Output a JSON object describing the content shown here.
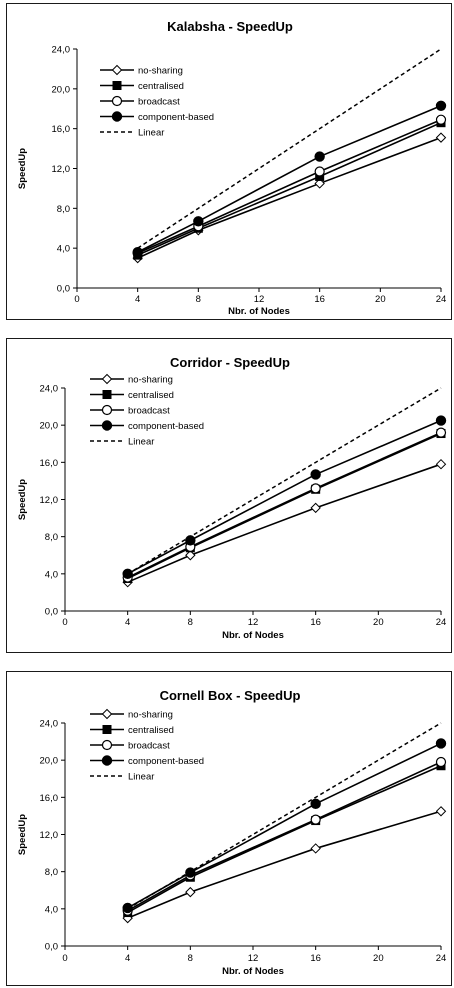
{
  "chart_data": [
    {
      "type": "line",
      "title": "Kalabsha - SpeedUp",
      "xlabel": "Nbr. of Nodes",
      "ylabel": "SpeedUp",
      "xlim": [
        0,
        24
      ],
      "ylim": [
        0,
        24
      ],
      "x_ticks": [
        "0",
        "4",
        "8",
        "12",
        "16",
        "20",
        "24"
      ],
      "y_ticks": [
        "0,0",
        "4,0",
        "8,0",
        "12,0",
        "16,0",
        "20,0",
        "24,0"
      ],
      "x": [
        4,
        8,
        16,
        24
      ],
      "legend_position": "top-left",
      "series": [
        {
          "name": "no-sharing",
          "marker": "diamond",
          "values": [
            3.0,
            5.8,
            10.5,
            15.1
          ]
        },
        {
          "name": "centralised",
          "marker": "square",
          "values": [
            3.3,
            6.0,
            11.2,
            16.6
          ]
        },
        {
          "name": "broadcast",
          "marker": "circle-open",
          "values": [
            3.5,
            6.2,
            11.7,
            16.9
          ]
        },
        {
          "name": "component-based",
          "marker": "circle-filled",
          "values": [
            3.6,
            6.7,
            13.2,
            18.3
          ]
        },
        {
          "name": "Linear",
          "marker": "none",
          "dashed": true,
          "values": [
            4,
            8,
            16,
            24
          ]
        }
      ]
    },
    {
      "type": "line",
      "title": "Corridor - SpeedUp",
      "xlabel": "Nbr. of Nodes",
      "ylabel": "SpeedUp",
      "xlim": [
        0,
        24
      ],
      "ylim": [
        0,
        24
      ],
      "x_ticks": [
        "0",
        "4",
        "8",
        "12",
        "16",
        "20",
        "24"
      ],
      "y_ticks": [
        "0,0",
        "4,0",
        "8,0",
        "12,0",
        "16,0",
        "20,0",
        "24,0"
      ],
      "x": [
        4,
        8,
        16,
        24
      ],
      "legend_position": "top-left",
      "series": [
        {
          "name": "no-sharing",
          "marker": "diamond",
          "values": [
            3.1,
            6.0,
            11.1,
            15.8
          ]
        },
        {
          "name": "centralised",
          "marker": "square",
          "values": [
            3.5,
            6.8,
            13.1,
            19.1
          ]
        },
        {
          "name": "broadcast",
          "marker": "circle-open",
          "values": [
            3.6,
            6.9,
            13.2,
            19.2
          ]
        },
        {
          "name": "component-based",
          "marker": "circle-filled",
          "values": [
            4.0,
            7.6,
            14.7,
            20.5
          ]
        },
        {
          "name": "Linear",
          "marker": "none",
          "dashed": true,
          "values": [
            4,
            8,
            16,
            24
          ]
        }
      ]
    },
    {
      "type": "line",
      "title": "Cornell Box - SpeedUp",
      "xlabel": "Nbr. of Nodes",
      "ylabel": "SpeedUp",
      "xlim": [
        0,
        24
      ],
      "ylim": [
        0,
        24
      ],
      "x_ticks": [
        "0",
        "4",
        "8",
        "12",
        "16",
        "20",
        "24"
      ],
      "y_ticks": [
        "0,0",
        "4,0",
        "8,0",
        "12,0",
        "16,0",
        "20,0",
        "24,0"
      ],
      "x": [
        4,
        8,
        16,
        24
      ],
      "legend_position": "top-left",
      "series": [
        {
          "name": "no-sharing",
          "marker": "diamond",
          "values": [
            3.0,
            5.8,
            10.5,
            14.5
          ]
        },
        {
          "name": "centralised",
          "marker": "square",
          "values": [
            3.6,
            7.4,
            13.5,
            19.4
          ]
        },
        {
          "name": "broadcast",
          "marker": "circle-open",
          "values": [
            3.8,
            7.6,
            13.6,
            19.8
          ]
        },
        {
          "name": "component-based",
          "marker": "circle-filled",
          "values": [
            4.1,
            7.9,
            15.3,
            21.8
          ]
        },
        {
          "name": "Linear",
          "marker": "none",
          "dashed": true,
          "values": [
            4,
            8,
            16,
            24
          ]
        }
      ]
    }
  ]
}
